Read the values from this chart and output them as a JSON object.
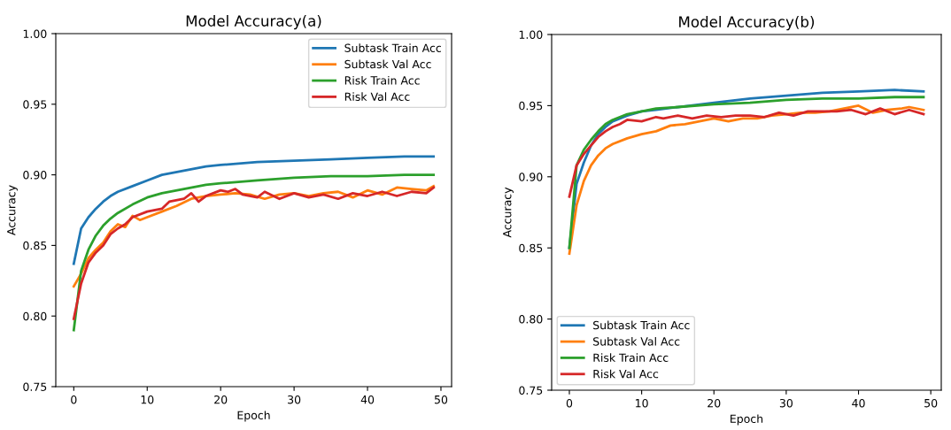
{
  "chart_data": [
    {
      "type": "line",
      "title": "Model Accuracy(a)",
      "xlabel": "Epoch",
      "ylabel": "Accuracy",
      "xlim": [
        -2.45,
        51.45
      ],
      "xticks": [
        0,
        10,
        20,
        30,
        40,
        50
      ],
      "ylim": [
        0.75,
        1.0
      ],
      "yticks": [
        {
          "value": 0.75,
          "label": "0.75"
        },
        {
          "value": 0.8,
          "label": "0.80"
        },
        {
          "value": 0.85,
          "label": "0.85"
        },
        {
          "value": 0.9,
          "label": "0.90"
        },
        {
          "value": 0.95,
          "label": "0.95"
        },
        {
          "value": 1.0,
          "label": "1.00"
        }
      ],
      "legend": "top right",
      "grid": false,
      "series": [
        {
          "name": "Subtask Train Acc",
          "color": "#1f77b4",
          "x": [
            0,
            1,
            2,
            3,
            4,
            5,
            6,
            8,
            10,
            12,
            15,
            18,
            20,
            25,
            30,
            35,
            40,
            45,
            49
          ],
          "values": [
            0.837,
            0.862,
            0.87,
            0.876,
            0.881,
            0.885,
            0.888,
            0.892,
            0.896,
            0.9,
            0.903,
            0.906,
            0.907,
            0.909,
            0.91,
            0.911,
            0.912,
            0.913,
            0.913
          ]
        },
        {
          "name": "Subtask Val Acc",
          "color": "#ff7f0e",
          "x": [
            0,
            1,
            2,
            3,
            4,
            5,
            6,
            7,
            8,
            9,
            10,
            12,
            14,
            16,
            18,
            20,
            22,
            24,
            26,
            28,
            30,
            32,
            34,
            36,
            38,
            40,
            42,
            44,
            46,
            48,
            49
          ],
          "values": [
            0.821,
            0.83,
            0.841,
            0.847,
            0.852,
            0.86,
            0.865,
            0.863,
            0.871,
            0.868,
            0.87,
            0.874,
            0.878,
            0.883,
            0.885,
            0.886,
            0.887,
            0.886,
            0.883,
            0.886,
            0.887,
            0.885,
            0.887,
            0.888,
            0.884,
            0.889,
            0.886,
            0.891,
            0.89,
            0.889,
            0.892
          ]
        },
        {
          "name": "Risk Train Acc",
          "color": "#2ca02c",
          "x": [
            0,
            1,
            2,
            3,
            4,
            5,
            6,
            8,
            10,
            12,
            15,
            18,
            20,
            25,
            30,
            35,
            40,
            45,
            49
          ],
          "values": [
            0.79,
            0.832,
            0.847,
            0.857,
            0.864,
            0.869,
            0.873,
            0.879,
            0.884,
            0.887,
            0.89,
            0.893,
            0.894,
            0.896,
            0.898,
            0.899,
            0.899,
            0.9,
            0.9
          ]
        },
        {
          "name": "Risk Val Acc",
          "color": "#d62728",
          "x": [
            0,
            1,
            2,
            3,
            4,
            5,
            6,
            7,
            8,
            10,
            12,
            13,
            15,
            16,
            17,
            18,
            20,
            21,
            22,
            23,
            25,
            26,
            28,
            30,
            32,
            34,
            36,
            38,
            40,
            42,
            44,
            46,
            48,
            49
          ],
          "values": [
            0.798,
            0.823,
            0.838,
            0.845,
            0.85,
            0.858,
            0.862,
            0.865,
            0.87,
            0.874,
            0.876,
            0.881,
            0.883,
            0.887,
            0.881,
            0.885,
            0.889,
            0.888,
            0.89,
            0.886,
            0.884,
            0.888,
            0.883,
            0.887,
            0.884,
            0.886,
            0.883,
            0.887,
            0.885,
            0.888,
            0.885,
            0.888,
            0.887,
            0.891
          ]
        }
      ]
    },
    {
      "type": "line",
      "title": "Model Accuracy(b)",
      "xlabel": "Epoch",
      "ylabel": "Accuracy",
      "xlim": [
        -2.45,
        51.45
      ],
      "xticks": [
        0,
        10,
        20,
        30,
        40,
        50
      ],
      "ylim": [
        0.75,
        1.0
      ],
      "yticks": [
        {
          "value": 0.75,
          "label": "0.75"
        },
        {
          "value": 0.8,
          "label": "0.80"
        },
        {
          "value": 0.85,
          "label": "0.85"
        },
        {
          "value": 0.9,
          "label": "0.90"
        },
        {
          "value": 0.95,
          "label": "0.95"
        },
        {
          "value": 1.0,
          "label": "1.00"
        }
      ],
      "legend": "bottom left",
      "grid": false,
      "series": [
        {
          "name": "Subtask Train Acc",
          "color": "#1f77b4",
          "x": [
            0,
            1,
            2,
            3,
            4,
            5,
            6,
            8,
            10,
            12,
            15,
            20,
            25,
            30,
            35,
            40,
            45,
            49
          ],
          "values": [
            0.85,
            0.895,
            0.91,
            0.922,
            0.93,
            0.935,
            0.939,
            0.943,
            0.946,
            0.947,
            0.949,
            0.952,
            0.955,
            0.957,
            0.959,
            0.96,
            0.961,
            0.96
          ]
        },
        {
          "name": "Subtask Val Acc",
          "color": "#ff7f0e",
          "x": [
            0,
            1,
            2,
            3,
            4,
            5,
            6,
            8,
            10,
            12,
            14,
            16,
            18,
            20,
            22,
            24,
            26,
            28,
            30,
            32,
            34,
            36,
            38,
            40,
            42,
            44,
            46,
            47,
            49
          ],
          "values": [
            0.846,
            0.88,
            0.897,
            0.908,
            0.915,
            0.92,
            0.923,
            0.927,
            0.93,
            0.932,
            0.936,
            0.937,
            0.939,
            0.941,
            0.939,
            0.941,
            0.941,
            0.943,
            0.944,
            0.945,
            0.945,
            0.946,
            0.948,
            0.95,
            0.945,
            0.947,
            0.948,
            0.949,
            0.947
          ]
        },
        {
          "name": "Risk Train Acc",
          "color": "#2ca02c",
          "x": [
            0,
            1,
            2,
            3,
            4,
            5,
            6,
            8,
            10,
            12,
            15,
            20,
            25,
            30,
            35,
            40,
            45,
            49
          ],
          "values": [
            0.85,
            0.908,
            0.919,
            0.926,
            0.932,
            0.937,
            0.94,
            0.944,
            0.946,
            0.948,
            0.949,
            0.951,
            0.952,
            0.954,
            0.955,
            0.955,
            0.956,
            0.956
          ]
        },
        {
          "name": "Risk Val Acc",
          "color": "#d62728",
          "x": [
            0,
            1,
            2,
            3,
            4,
            5,
            6,
            7,
            8,
            10,
            12,
            13,
            15,
            17,
            19,
            21,
            23,
            25,
            27,
            29,
            31,
            33,
            35,
            37,
            39,
            41,
            43,
            45,
            47,
            49
          ],
          "values": [
            0.886,
            0.908,
            0.916,
            0.922,
            0.928,
            0.932,
            0.935,
            0.937,
            0.94,
            0.939,
            0.942,
            0.941,
            0.943,
            0.941,
            0.943,
            0.942,
            0.943,
            0.943,
            0.942,
            0.945,
            0.943,
            0.946,
            0.946,
            0.946,
            0.947,
            0.944,
            0.948,
            0.944,
            0.947,
            0.944
          ]
        }
      ]
    }
  ]
}
